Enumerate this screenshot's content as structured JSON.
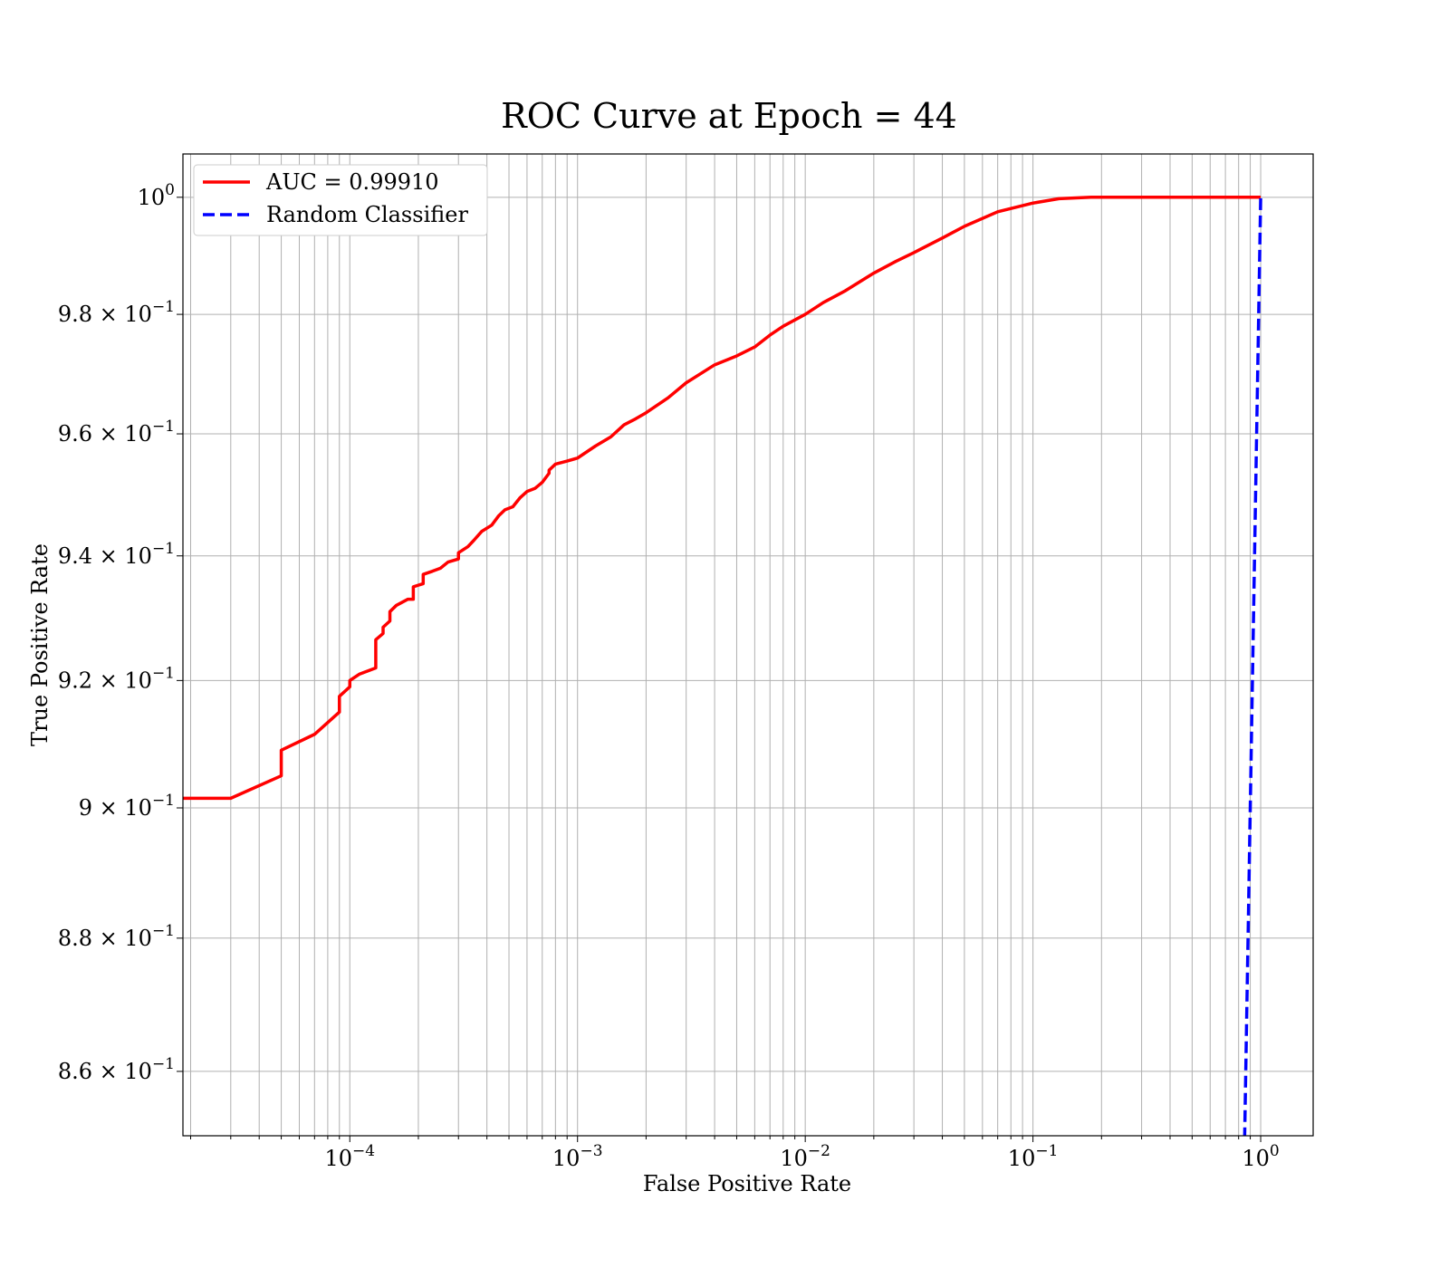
{
  "chart_data": {
    "type": "line",
    "title": "ROC Curve at Epoch = 44",
    "xlabel": "False Positive Rate",
    "ylabel": "True Positive Rate",
    "x_scale": "log",
    "y_scale": "log",
    "xlim": [
      1.85e-05,
      1.7
    ],
    "ylim": [
      0.8505,
      1.0075
    ],
    "grid": true,
    "legend_position": "upper-left",
    "x_ticks": [
      {
        "value": 0.0001,
        "base": "10",
        "exp": "−4"
      },
      {
        "value": 0.001,
        "base": "10",
        "exp": "−3"
      },
      {
        "value": 0.01,
        "base": "10",
        "exp": "−2"
      },
      {
        "value": 0.1,
        "base": "10",
        "exp": "−1"
      },
      {
        "value": 1,
        "base": "10",
        "exp": "0"
      }
    ],
    "y_ticks": [
      {
        "value": 0.86,
        "mantissa": "8.6 × 10",
        "exp": "−1"
      },
      {
        "value": 0.88,
        "mantissa": "8.8 × 10",
        "exp": "−1"
      },
      {
        "value": 0.9,
        "mantissa": "9 × 10",
        "exp": "−1"
      },
      {
        "value": 0.92,
        "mantissa": "9.2 × 10",
        "exp": "−1"
      },
      {
        "value": 0.94,
        "mantissa": "9.4 × 10",
        "exp": "−1"
      },
      {
        "value": 0.96,
        "mantissa": "9.6 × 10",
        "exp": "−1"
      },
      {
        "value": 0.98,
        "mantissa": "9.8 × 10",
        "exp": "−1"
      },
      {
        "value": 1.0,
        "mantissa": "10",
        "exp": "0"
      }
    ],
    "series": [
      {
        "name": "AUC = 0.99910",
        "color": "#ff0000",
        "style": "solid",
        "x": [
          1.85e-05,
          3e-05,
          5e-05,
          5e-05,
          7e-05,
          9e-05,
          9e-05,
          0.0001,
          0.0001,
          0.00011,
          0.00013,
          0.00013,
          0.00014,
          0.00014,
          0.00015,
          0.00015,
          0.00016,
          0.00018,
          0.00019,
          0.00019,
          0.00021,
          0.00021,
          0.00023,
          0.00025,
          0.00027,
          0.0003,
          0.0003,
          0.00033,
          0.00035,
          0.00038,
          0.00042,
          0.00045,
          0.00048,
          0.00052,
          0.00056,
          0.0006,
          0.00065,
          0.0007,
          0.00075,
          0.00075,
          0.0008,
          0.0009,
          0.001,
          0.0012,
          0.0014,
          0.0016,
          0.0018,
          0.002,
          0.0025,
          0.003,
          0.004,
          0.005,
          0.006,
          0.007,
          0.008,
          0.01,
          0.012,
          0.015,
          0.02,
          0.025,
          0.03,
          0.04,
          0.05,
          0.07,
          0.1,
          0.13,
          0.18,
          0.3,
          0.5,
          1.0
        ],
        "y": [
          0.9015,
          0.9015,
          0.905,
          0.909,
          0.9115,
          0.915,
          0.9175,
          0.919,
          0.92,
          0.921,
          0.922,
          0.9265,
          0.9275,
          0.9285,
          0.9295,
          0.931,
          0.932,
          0.933,
          0.933,
          0.935,
          0.9355,
          0.937,
          0.9375,
          0.938,
          0.939,
          0.9395,
          0.9405,
          0.9415,
          0.9425,
          0.944,
          0.945,
          0.9465,
          0.9475,
          0.948,
          0.9495,
          0.9505,
          0.951,
          0.952,
          0.9535,
          0.954,
          0.955,
          0.9555,
          0.956,
          0.958,
          0.9595,
          0.9615,
          0.9625,
          0.9635,
          0.966,
          0.9685,
          0.9715,
          0.973,
          0.9745,
          0.9765,
          0.978,
          0.98,
          0.982,
          0.984,
          0.987,
          0.989,
          0.9905,
          0.993,
          0.995,
          0.9975,
          0.999,
          0.99975,
          1.0,
          1.0,
          1.0,
          1.0
        ]
      },
      {
        "name": "Random Classifier",
        "color": "#0000ff",
        "style": "dashed",
        "x": [
          0.85,
          1.0
        ],
        "y": [
          0.85,
          1.0
        ]
      }
    ]
  }
}
